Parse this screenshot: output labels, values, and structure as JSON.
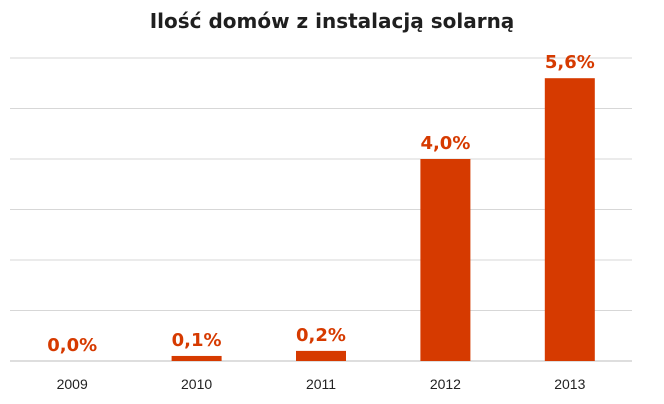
{
  "chart_data": {
    "type": "bar",
    "title": "Ilość domów z instalacją solarną",
    "categories": [
      "2009",
      "2010",
      "2011",
      "2012",
      "2013"
    ],
    "values": [
      0.0,
      0.1,
      0.2,
      4.0,
      5.6
    ],
    "data_labels": [
      "0,0%",
      "0,1%",
      "0,2%",
      "4,0%",
      "5,6%"
    ],
    "ylim": [
      0,
      6
    ],
    "gridlines": true,
    "y_tick_labels_visible": false,
    "colors": {
      "bar": "#d63a00",
      "label": "#d63a00"
    }
  }
}
